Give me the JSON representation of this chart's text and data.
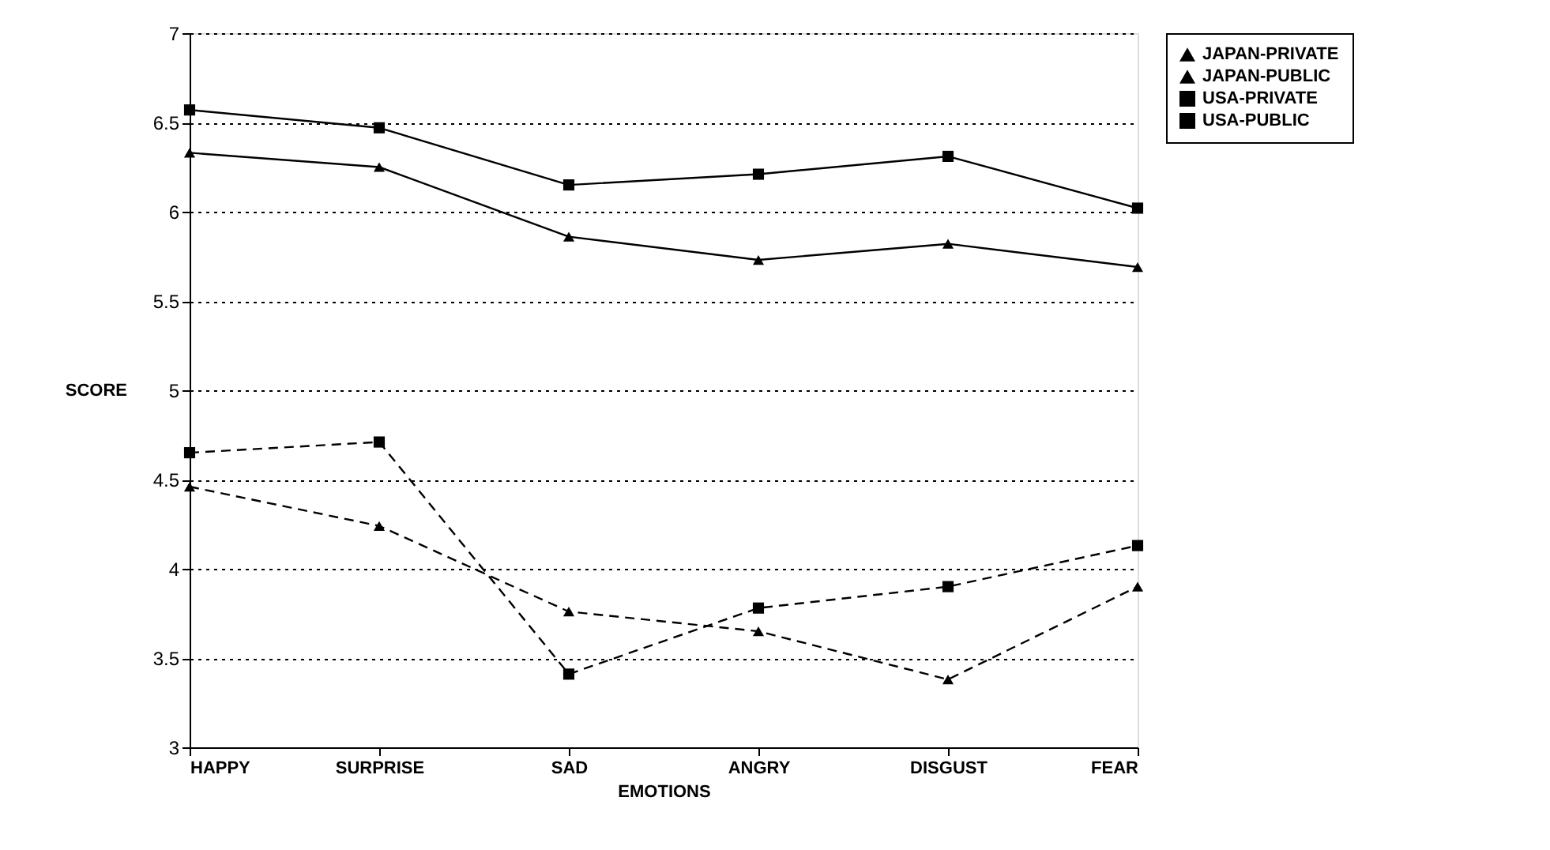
{
  "chart_data": {
    "type": "line",
    "xlabel": "EMOTIONS",
    "ylabel": "SCORE",
    "categories": [
      "HAPPY",
      "SURPRISE",
      "SAD",
      "ANGRY",
      "DISGUST",
      "FEAR"
    ],
    "series": [
      {
        "name": "JAPAN-PRIVATE",
        "color": "#000000",
        "marker": "triangle",
        "line_style": "solid",
        "values": [
          6.33,
          6.25,
          5.86,
          5.73,
          5.82,
          5.69
        ]
      },
      {
        "name": "JAPAN-PUBLIC",
        "color": "#000000",
        "marker": "triangle",
        "line_style": "dashed",
        "values": [
          4.46,
          4.24,
          3.76,
          3.65,
          3.38,
          3.9
        ]
      },
      {
        "name": "USA-PRIVATE",
        "color": "#000000",
        "marker": "square",
        "line_style": "solid",
        "values": [
          6.57,
          6.47,
          6.15,
          6.21,
          6.31,
          6.02
        ]
      },
      {
        "name": "USA-PUBLIC",
        "color": "#000000",
        "marker": "square",
        "line_style": "dashed",
        "values": [
          4.65,
          4.71,
          3.41,
          3.78,
          3.9,
          4.13
        ]
      }
    ],
    "ylim": [
      3,
      7
    ],
    "yticks": [
      3,
      3.5,
      4,
      4.5,
      5,
      5.5,
      6,
      6.5,
      7
    ],
    "grid": "y",
    "legend": "right"
  }
}
